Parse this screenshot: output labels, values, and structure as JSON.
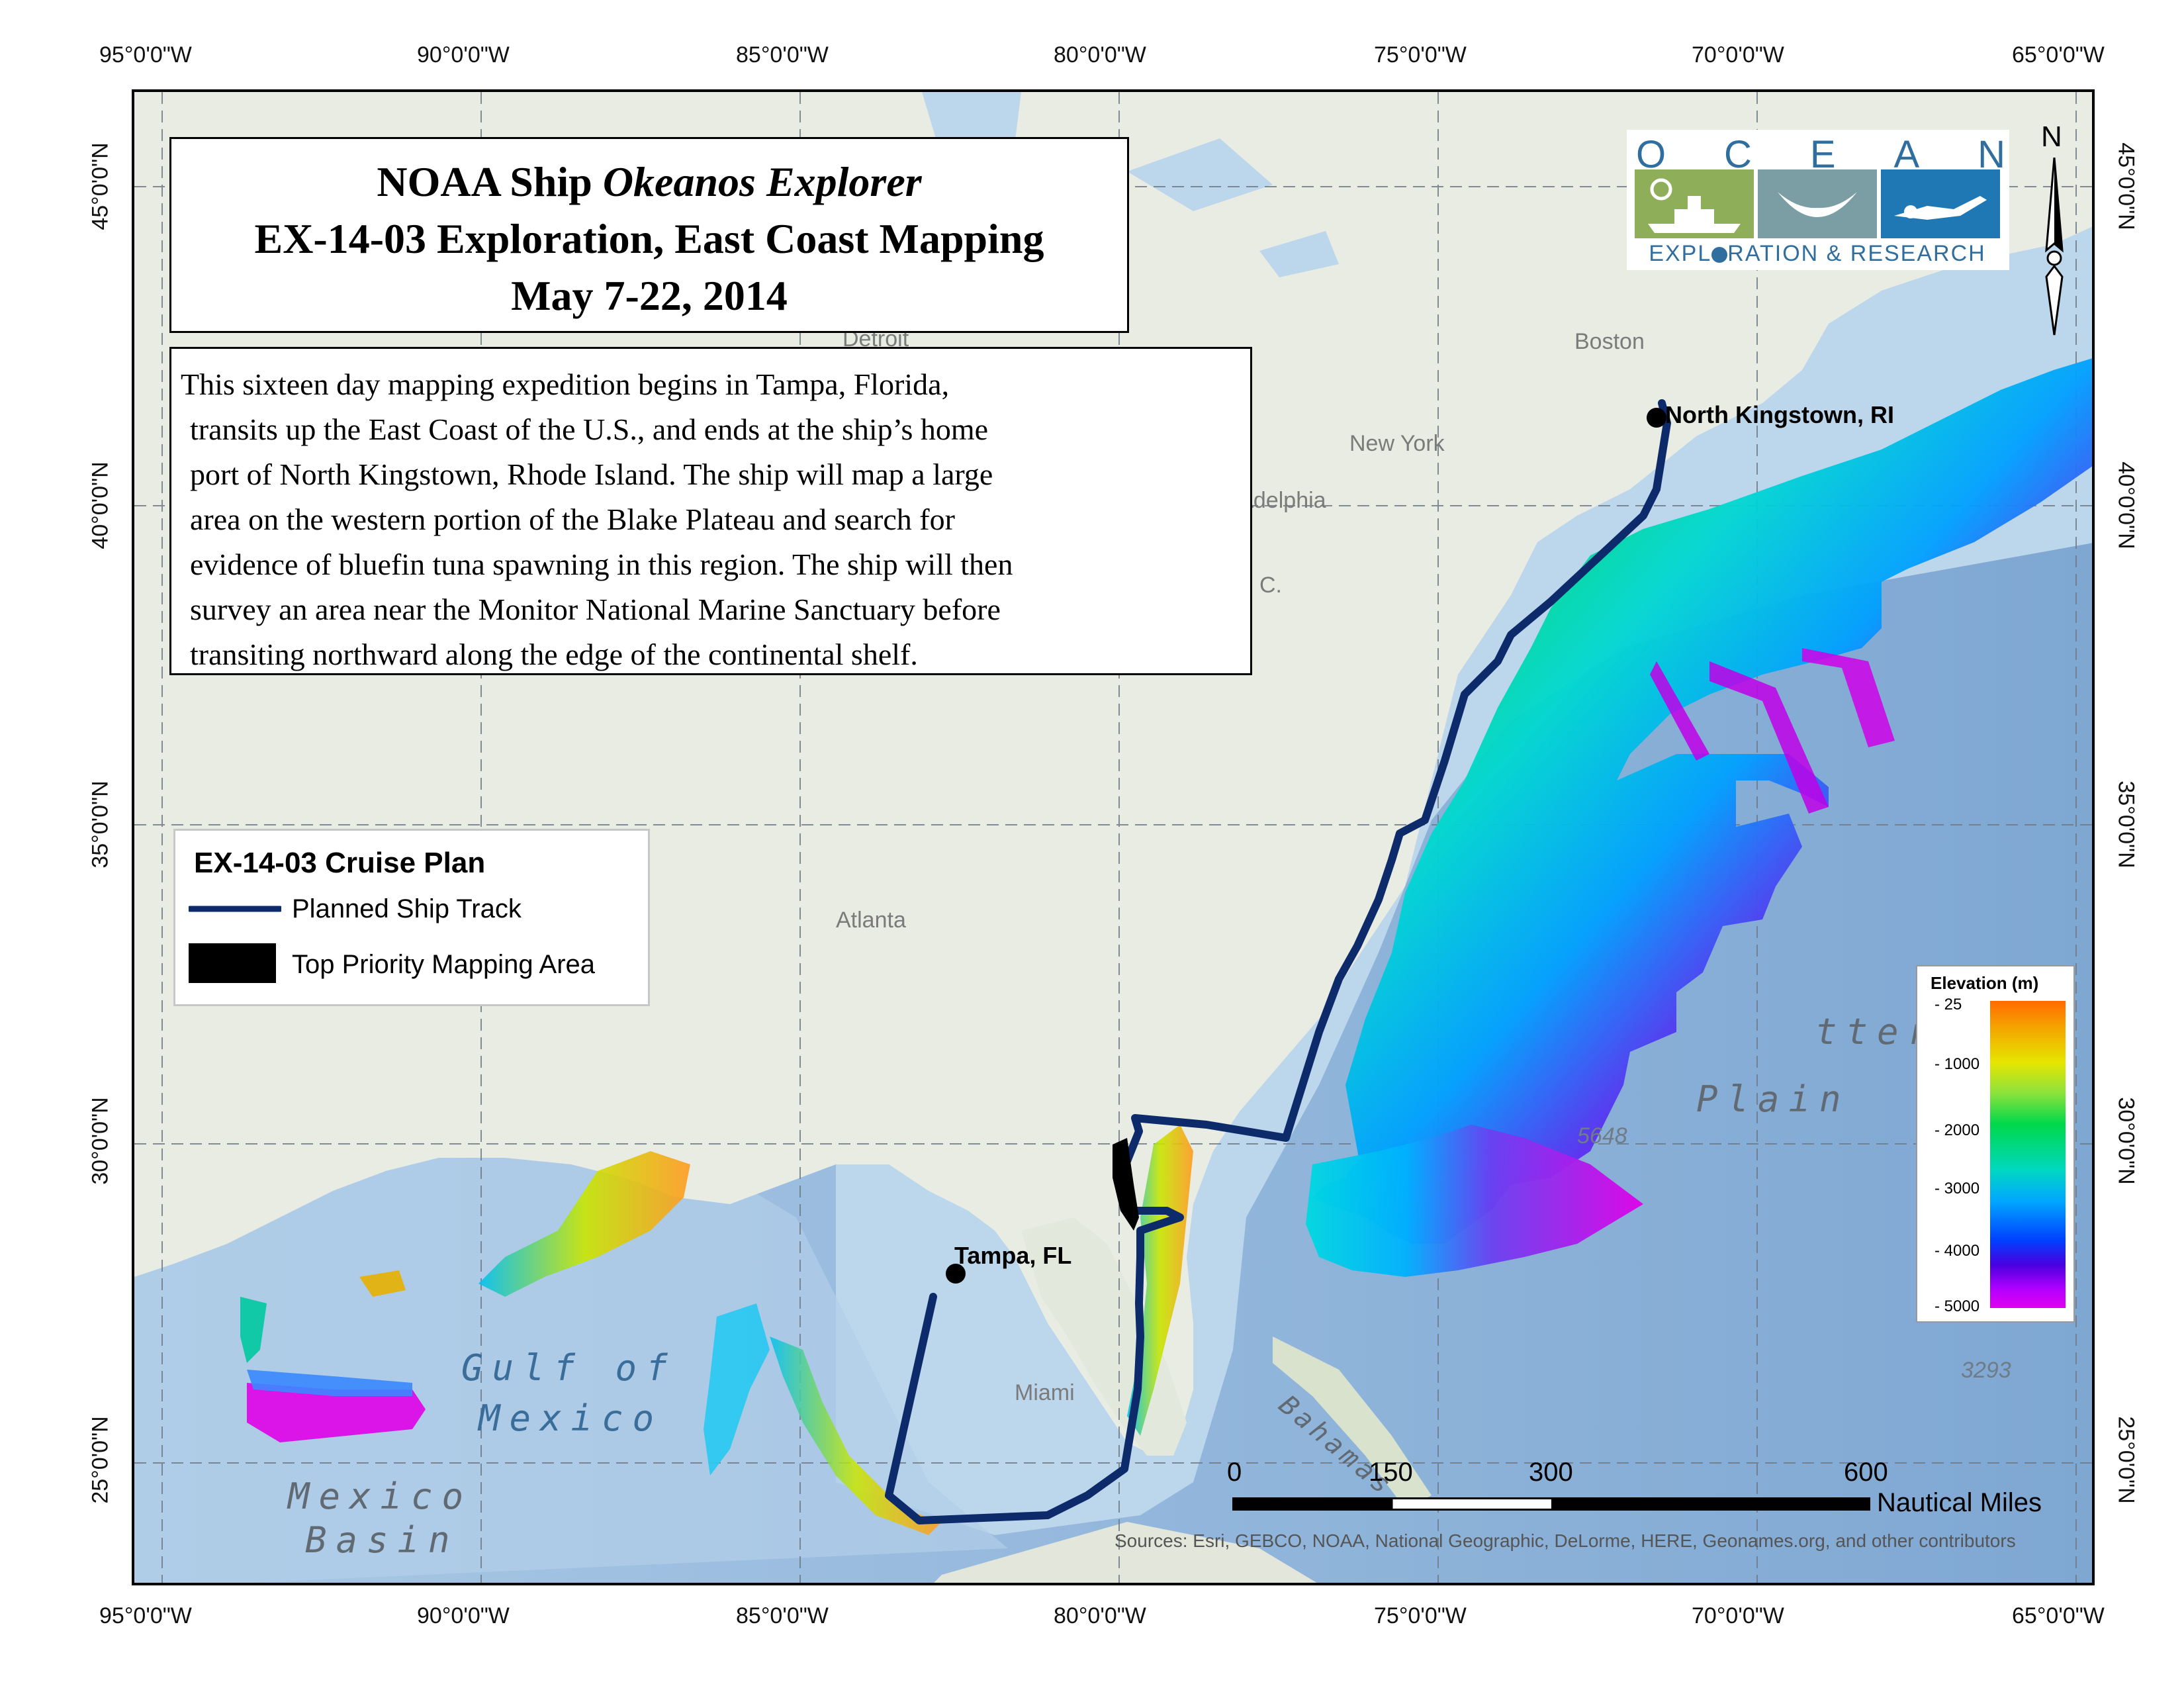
{
  "axis": {
    "top_lon": [
      "95°0'0\"W",
      "90°0'0\"W",
      "85°0'0\"W",
      "80°0'0\"W",
      "75°0'0\"W",
      "70°0'0\"W",
      "65°0'0\"W"
    ],
    "bottom_lon": [
      "95°0'0\"W",
      "90°0'0\"W",
      "85°0'0\"W",
      "80°0'0\"W",
      "75°0'0\"W",
      "70°0'0\"W",
      "65°0'0\"W"
    ],
    "lat": [
      "45°0'0\"N",
      "40°0'0\"N",
      "35°0'0\"N",
      "30°0'0\"N",
      "25°0'0\"N"
    ]
  },
  "title": {
    "line1_prefix": "NOAA Ship",
    "line1_ship": "Okeanos Explorer",
    "line2": "EX-14-03 Exploration, East Coast Mapping",
    "line3": "May 7-22, 2014"
  },
  "description": [
    "This sixteen day mapping expedition begins in Tampa, Florida,",
    "transits up the East Coast of the U.S., and ends at the ship’s home",
    "port of North Kingstown, Rhode Island. The ship will map a large",
    "area on the western portion of the Blake Plateau and search for",
    "evidence of bluefin tuna spawning in this region. The ship will then",
    "survey an area near the Monitor National Marine Sanctuary before",
    "transiting northward along the edge of the continental shelf."
  ],
  "legend": {
    "title": "EX-14-03 Cruise Plan",
    "items": [
      "Planned Ship Track",
      "Top Priority Mapping Area"
    ],
    "track_color": "#0d2a6b",
    "priority_color": "#000000"
  },
  "elevation_legend": {
    "title": "Elevation (m)",
    "ticks": [
      "- 25",
      "- 1000",
      "- 2000",
      "- 3000",
      "- 4000",
      "- 5000"
    ]
  },
  "logo": {
    "letters": [
      "O",
      "C",
      "E",
      "A",
      "N"
    ],
    "subtitle_a": "EXPL",
    "subtitle_b": "RATION & RESEARCH"
  },
  "north_arrow": "N",
  "places": {
    "boston": "Boston",
    "new_york": "New York",
    "philadelphia": "hiladelphia",
    "detroit": "Detroit",
    "dc": "C.",
    "atlanta": "Atlanta",
    "miami": "Miami",
    "tampa": "Tampa, FL",
    "north_kingstown": "North Kingstown, RI"
  },
  "sea_labels": {
    "gulf_1": "Gulf of",
    "gulf_2": "Mexico",
    "basin_1": "Mexico",
    "basin_2": "Basin",
    "hatteras_1": "tteras",
    "hatteras_2": "Plain",
    "bahamas": "Bahamas"
  },
  "depths": [
    "5648",
    "3293"
  ],
  "scale": {
    "ticks": [
      "0",
      "150",
      "300",
      "600"
    ],
    "unit": "Nautical Miles"
  },
  "sources": "Sources: Esri, GEBCO, NOAA, National Geographic, DeLorme, HERE, Geonames.org, and other contributors",
  "colors": {
    "land": "#e9ece3",
    "shelf": "#bcd6ec",
    "ocean": "#9fc0e0",
    "deep": "#8fb3d8",
    "track": "#0d2a6b"
  }
}
